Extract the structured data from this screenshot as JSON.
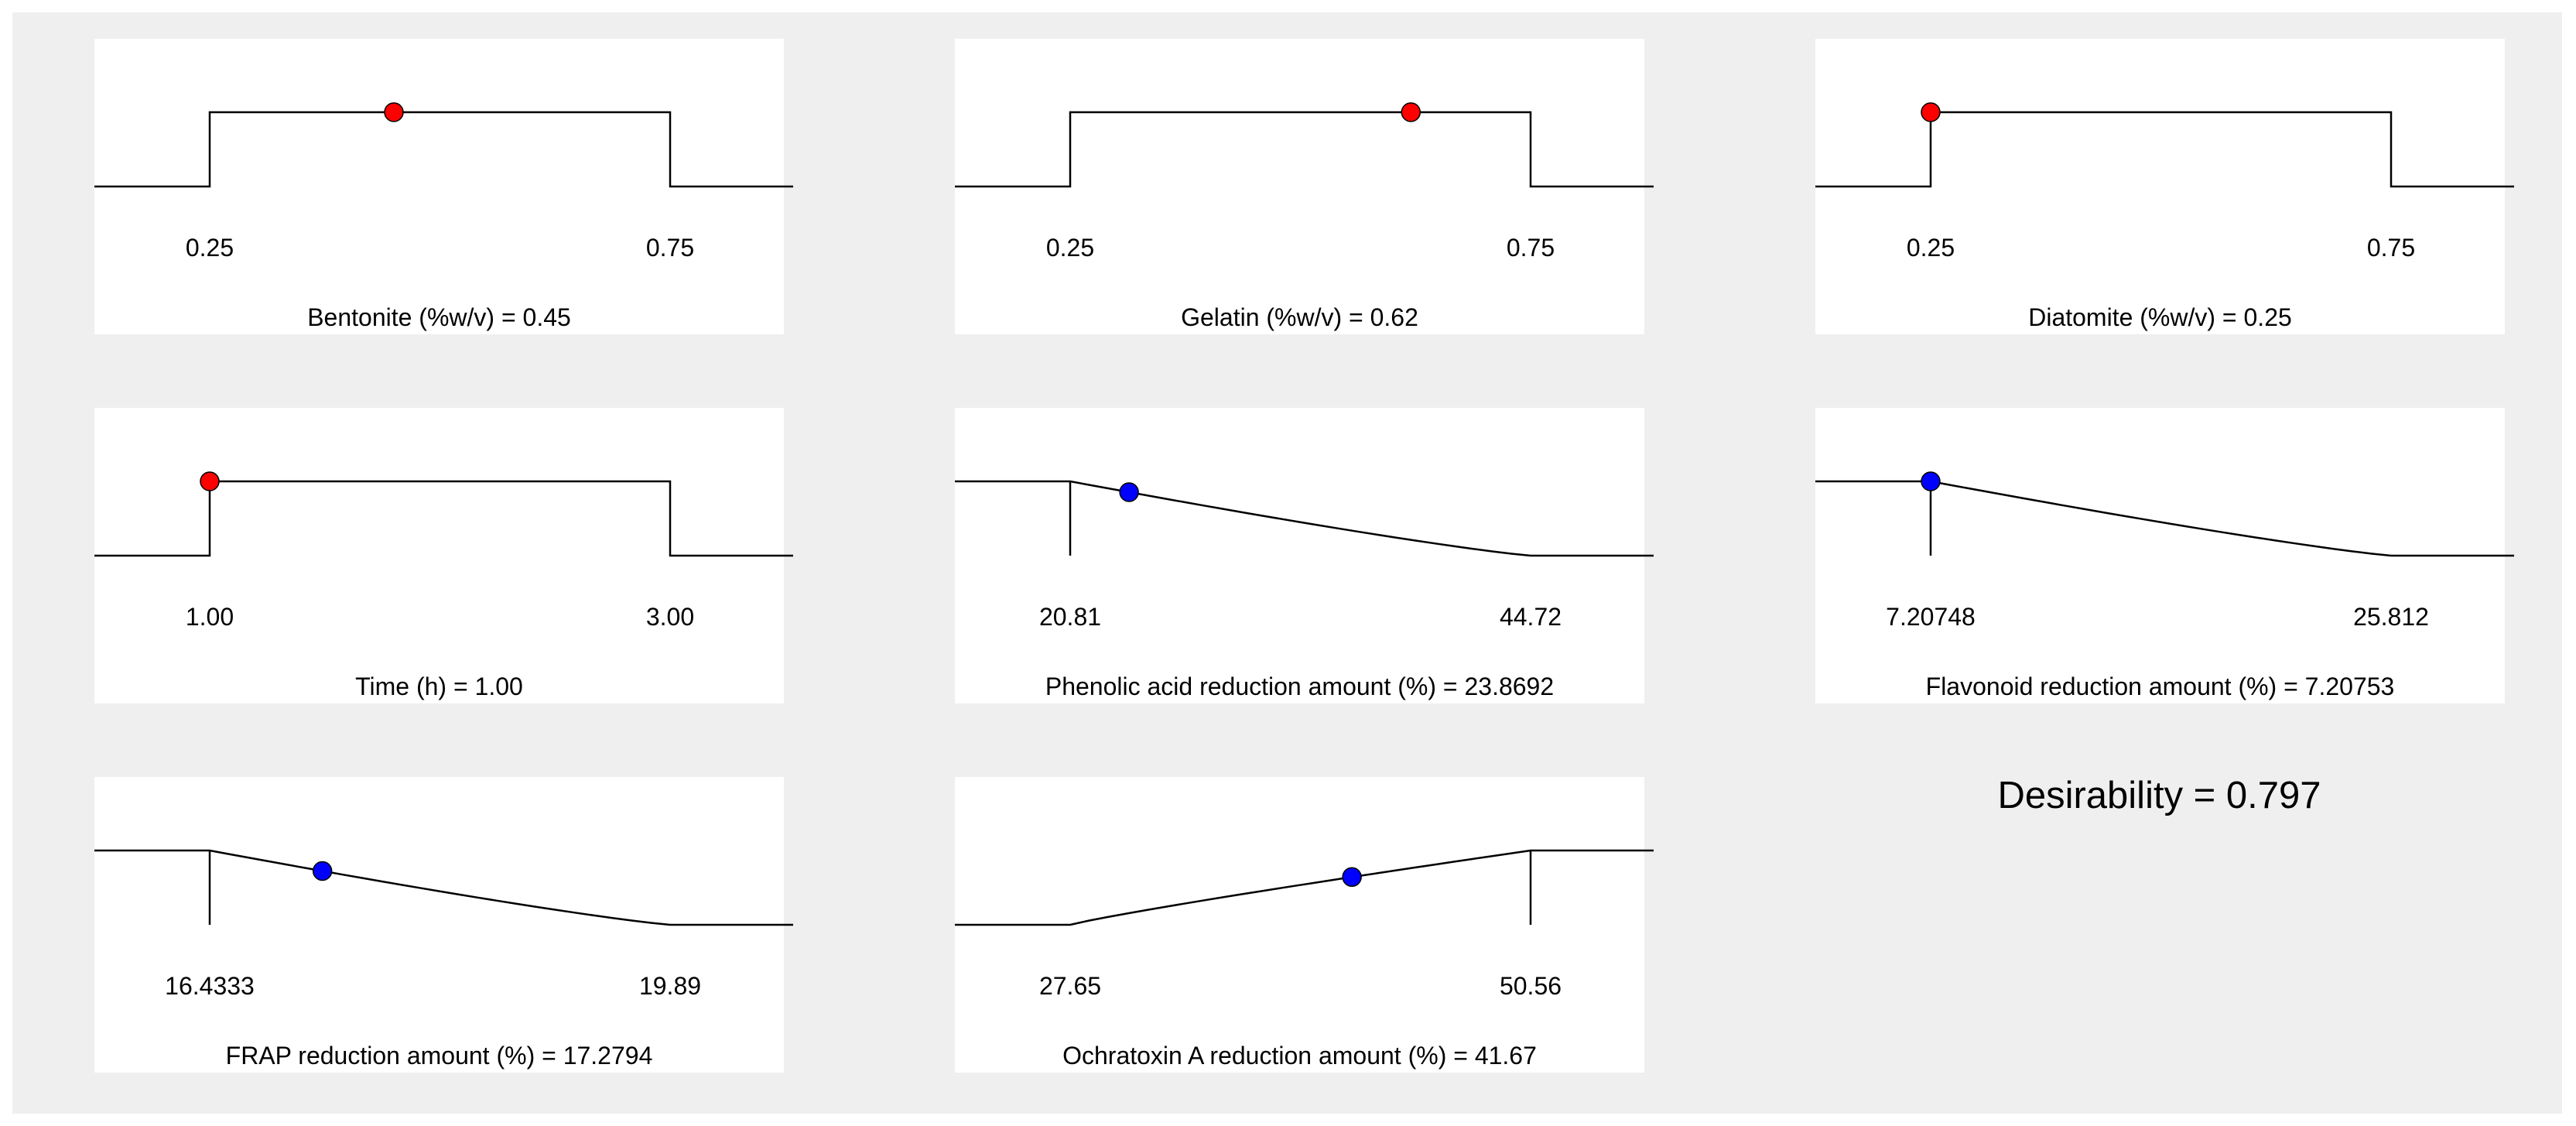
{
  "colors": {
    "factor_point": "#ff0000",
    "response_point": "#0000ff",
    "line": "#000000"
  },
  "chart_data": [
    {
      "type": "line",
      "role": "factor",
      "kind": "range",
      "label": "Bentonite (%w/v) = 0.45",
      "low_label": "0.25",
      "high_label": "0.75",
      "low": 0.25,
      "high": 0.75,
      "value": 0.45
    },
    {
      "type": "line",
      "role": "factor",
      "kind": "range",
      "label": "Gelatin (%w/v) = 0.62",
      "low_label": "0.25",
      "high_label": "0.75",
      "low": 0.25,
      "high": 0.75,
      "value": 0.62
    },
    {
      "type": "line",
      "role": "factor",
      "kind": "range",
      "label": "Diatomite (%w/v)  = 0.25",
      "low_label": "0.25",
      "high_label": "0.75",
      "low": 0.25,
      "high": 0.75,
      "value": 0.25
    },
    {
      "type": "line",
      "role": "factor",
      "kind": "range",
      "label": "Time (h) = 1.00",
      "low_label": "1.00",
      "high_label": "3.00",
      "low": 1.0,
      "high": 3.0,
      "value": 1.0
    },
    {
      "type": "line",
      "role": "response",
      "kind": "minimize",
      "label": "Phenolic acid reduction amount (%) = 23.8692",
      "low_label": "20.81",
      "high_label": "44.72",
      "low": 20.81,
      "high": 44.72,
      "value": 23.8692
    },
    {
      "type": "line",
      "role": "response",
      "kind": "minimize",
      "label": "Flavonoid reduction amount (%) = 7.20753",
      "low_label": "7.20748",
      "high_label": "25.812",
      "low": 7.20748,
      "high": 25.812,
      "value": 7.20753
    },
    {
      "type": "line",
      "role": "response",
      "kind": "minimize",
      "label": "FRAP reduction amount (%) = 17.2794",
      "low_label": "16.4333",
      "high_label": "19.89",
      "low": 16.4333,
      "high": 19.89,
      "value": 17.2794
    },
    {
      "type": "line",
      "role": "response",
      "kind": "maximize",
      "label": "Ochratoxin A reduction amount (%) = 41.67",
      "low_label": "27.65",
      "high_label": "50.56",
      "low": 27.65,
      "high": 50.56,
      "value": 41.67
    }
  ],
  "desirability_text": "Desirability = 0.797"
}
